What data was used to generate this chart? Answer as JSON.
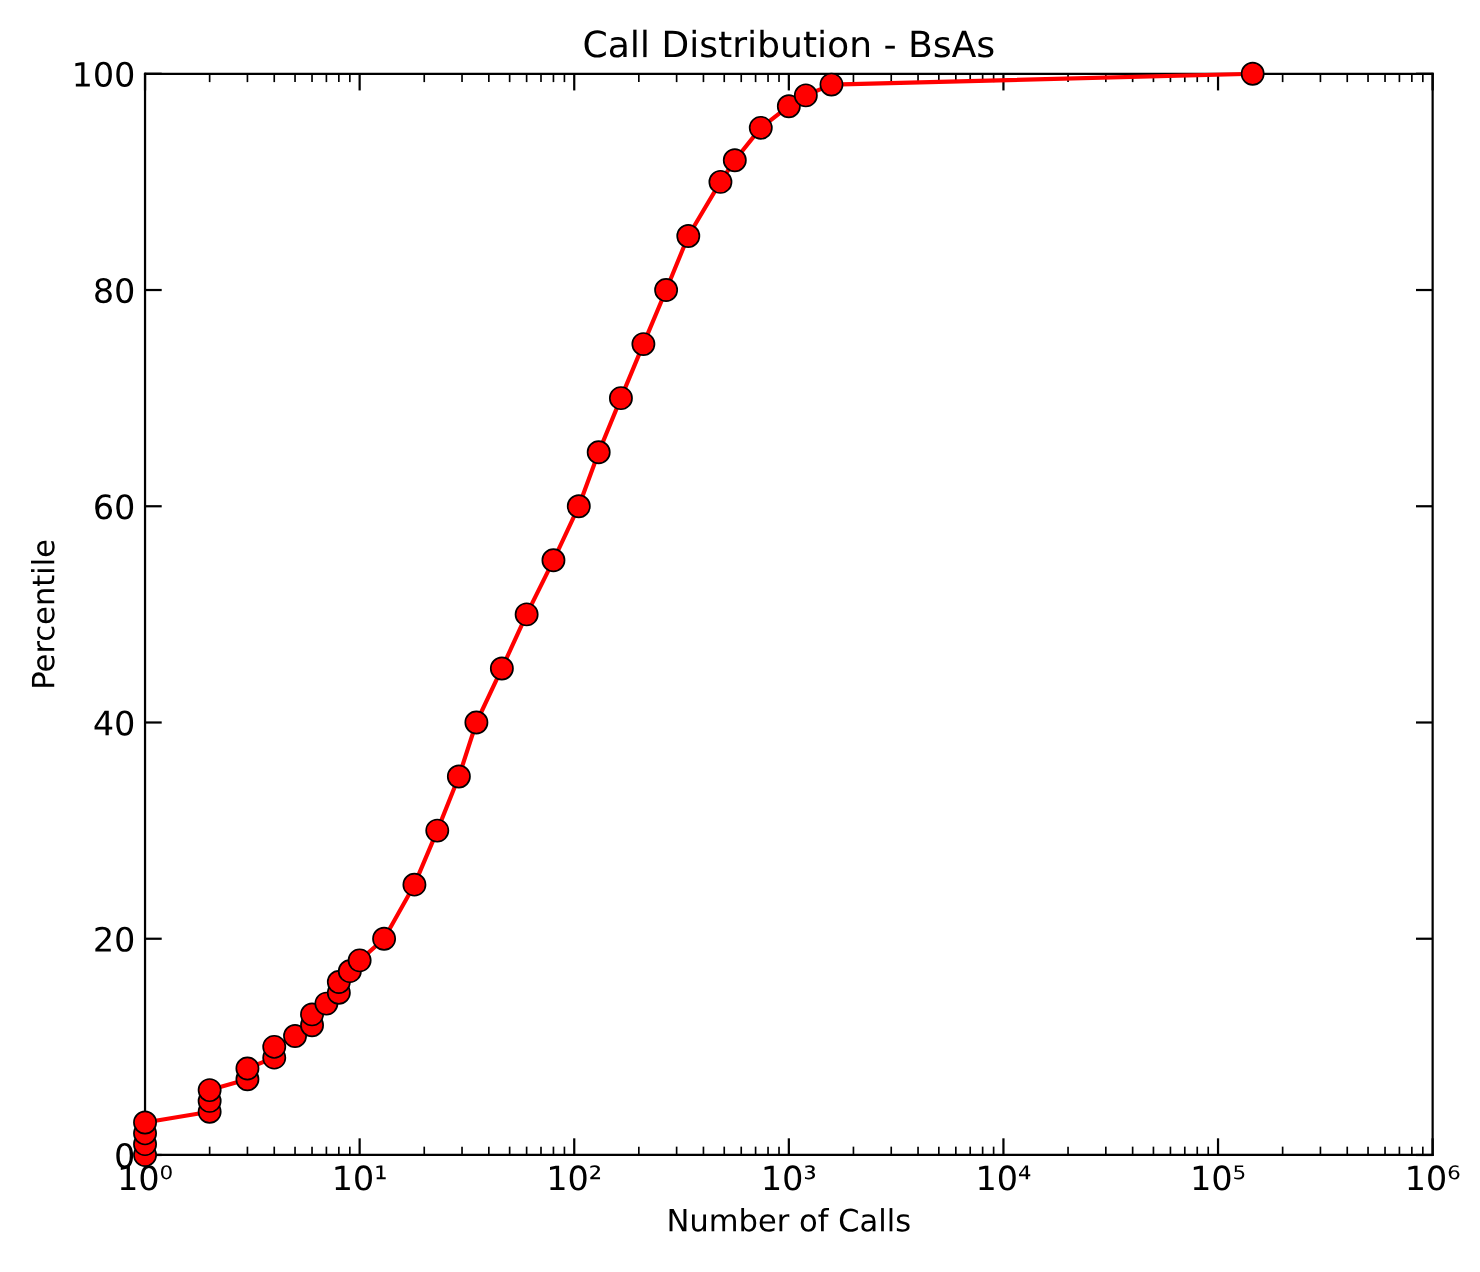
{
  "chart_data": {
    "type": "line",
    "title": "Call Distribution - BsAs",
    "xlabel": "Number of Calls",
    "ylabel": "Percentile",
    "x": [
      1,
      1,
      1,
      1,
      2,
      2,
      2,
      3,
      3,
      4,
      4,
      5,
      6,
      6,
      7,
      8,
      8,
      9,
      10,
      13,
      18,
      23,
      29,
      35,
      46,
      60,
      80,
      105,
      130,
      165,
      210,
      268,
      340,
      480,
      560,
      740,
      1000,
      1200,
      1580,
      145000
    ],
    "series": [
      {
        "color": "#ff0000",
        "values": [
          0,
          1,
          2,
          3,
          4,
          5,
          6,
          7,
          8,
          9,
          10,
          11,
          12,
          13,
          14,
          15,
          16,
          17,
          18,
          20,
          25,
          30,
          35,
          40,
          45,
          50,
          55,
          60,
          65,
          70,
          75,
          80,
          85,
          90,
          92,
          95,
          97,
          98,
          99,
          100
        ]
      }
    ],
    "log": "x",
    "xlim": [
      1,
      1000000
    ],
    "xticks": [
      {
        "value": 1,
        "label": "10⁰"
      },
      {
        "value": 10,
        "label": "10¹"
      },
      {
        "value": 100,
        "label": "10²"
      },
      {
        "value": 1000,
        "label": "10³"
      },
      {
        "value": 10000,
        "label": "10⁴"
      },
      {
        "value": 100000,
        "label": "10⁵"
      },
      {
        "value": 1000000,
        "label": "10⁶"
      }
    ],
    "ylim": [
      0,
      100
    ],
    "yticks": [
      0,
      20,
      40,
      60,
      80,
      100
    ],
    "marker": "circle",
    "line_style": "solid",
    "grid": false
  }
}
